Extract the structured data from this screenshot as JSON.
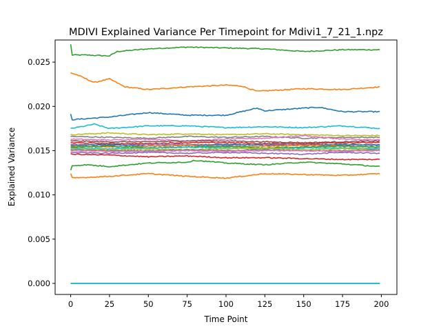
{
  "chart_data": {
    "type": "line",
    "title": "MDIVI Explained Variance Per Timepoint for Mdivi1_7_21_1.npz",
    "xlabel": "Time Point",
    "ylabel": "Explained Variance",
    "xlim": [
      -10,
      210
    ],
    "ylim": [
      -0.00125,
      0.0275
    ],
    "xticks": [
      0,
      25,
      50,
      75,
      100,
      125,
      150,
      175,
      200
    ],
    "xtick_labels": [
      "0",
      "25",
      "50",
      "75",
      "100",
      "125",
      "150",
      "175",
      "200"
    ],
    "yticks": [
      0.0,
      0.005,
      0.01,
      0.015,
      0.02,
      0.025
    ],
    "ytick_labels": [
      "0.000",
      "0.005",
      "0.010",
      "0.015",
      "0.020",
      "0.025"
    ],
    "grid": false,
    "legend": "none",
    "x_range": [
      0,
      199
    ],
    "series": [
      {
        "color": "#2ca02c",
        "x": [
          0,
          1,
          10,
          25,
          30,
          50,
          75,
          100,
          125,
          150,
          175,
          199
        ],
        "y": [
          0.027,
          0.0258,
          0.0258,
          0.0257,
          0.0262,
          0.0265,
          0.0267,
          0.0266,
          0.0265,
          0.0262,
          0.0264,
          0.0264
        ]
      },
      {
        "color": "#ff7f0e",
        "x": [
          0,
          5,
          15,
          25,
          35,
          50,
          75,
          100,
          110,
          120,
          150,
          175,
          199
        ],
        "y": [
          0.0238,
          0.0235,
          0.0227,
          0.0231,
          0.0222,
          0.0219,
          0.0222,
          0.0224,
          0.0223,
          0.0217,
          0.022,
          0.0219,
          0.0222
        ]
      },
      {
        "color": "#1f77b4",
        "x": [
          0,
          1,
          25,
          50,
          75,
          100,
          120,
          125,
          150,
          160,
          175,
          199
        ],
        "y": [
          0.0191,
          0.0185,
          0.0188,
          0.0193,
          0.019,
          0.019,
          0.0198,
          0.0195,
          0.0198,
          0.0199,
          0.0194,
          0.0194
        ]
      },
      {
        "color": "#17becf",
        "x": [
          0,
          10,
          15,
          25,
          50,
          75,
          100,
          125,
          150,
          175,
          199
        ],
        "y": [
          0.0175,
          0.0178,
          0.018,
          0.0175,
          0.0178,
          0.0178,
          0.0176,
          0.0177,
          0.0176,
          0.0178,
          0.0175
        ]
      },
      {
        "color": "#bcbd22",
        "x": [
          0,
          25,
          50,
          75,
          100,
          125,
          150,
          175,
          199
        ],
        "y": [
          0.0168,
          0.017,
          0.0168,
          0.0169,
          0.0168,
          0.0169,
          0.0168,
          0.0167,
          0.0167
        ]
      },
      {
        "color": "#7f7f7f",
        "x": [
          0,
          25,
          50,
          75,
          100,
          125,
          150,
          175,
          199
        ],
        "y": [
          0.0166,
          0.0165,
          0.0164,
          0.0166,
          0.0165,
          0.0166,
          0.0164,
          0.0165,
          0.0165
        ]
      },
      {
        "color": "#e377c2",
        "x": [
          0,
          25,
          50,
          75,
          100,
          125,
          150,
          175,
          199
        ],
        "y": [
          0.0163,
          0.0162,
          0.0163,
          0.0161,
          0.0163,
          0.0164,
          0.0167,
          0.0163,
          0.0162
        ]
      },
      {
        "color": "#8c564b",
        "x": [
          0,
          25,
          50,
          75,
          100,
          125,
          150,
          175,
          199
        ],
        "y": [
          0.0161,
          0.016,
          0.016,
          0.0161,
          0.0161,
          0.016,
          0.0159,
          0.016,
          0.0161
        ]
      },
      {
        "color": "#d62728",
        "x": [
          0,
          25,
          50,
          75,
          100,
          125,
          150,
          175,
          199
        ],
        "y": [
          0.0159,
          0.0158,
          0.0158,
          0.0159,
          0.0159,
          0.0158,
          0.0158,
          0.0159,
          0.0159
        ]
      },
      {
        "color": "#9467bd",
        "x": [
          0,
          25,
          50,
          75,
          100,
          125,
          150,
          175,
          199
        ],
        "y": [
          0.0157,
          0.0156,
          0.0157,
          0.0157,
          0.0156,
          0.0157,
          0.0157,
          0.0156,
          0.0157
        ]
      },
      {
        "color": "#1f77b4",
        "x": [
          0,
          25,
          50,
          75,
          100,
          125,
          150,
          175,
          199
        ],
        "y": [
          0.0156,
          0.0157,
          0.0155,
          0.0156,
          0.0157,
          0.0156,
          0.0156,
          0.0157,
          0.0156
        ]
      },
      {
        "color": "#ff7f0e",
        "x": [
          0,
          25,
          50,
          75,
          100,
          125,
          150,
          175,
          199
        ],
        "y": [
          0.0155,
          0.0154,
          0.0155,
          0.0156,
          0.0154,
          0.0155,
          0.0156,
          0.0155,
          0.0154
        ]
      },
      {
        "color": "#2ca02c",
        "x": [
          0,
          25,
          50,
          75,
          100,
          125,
          150,
          175,
          199
        ],
        "y": [
          0.0154,
          0.0155,
          0.0153,
          0.0154,
          0.0155,
          0.0153,
          0.0154,
          0.0155,
          0.0154
        ]
      },
      {
        "color": "#17becf",
        "x": [
          0,
          25,
          50,
          75,
          100,
          125,
          150,
          175,
          199
        ],
        "y": [
          0.0153,
          0.0152,
          0.0153,
          0.0154,
          0.0153,
          0.0152,
          0.0153,
          0.0153,
          0.0152
        ]
      },
      {
        "color": "#bcbd22",
        "x": [
          0,
          25,
          50,
          75,
          100,
          125,
          150,
          175,
          199
        ],
        "y": [
          0.0152,
          0.0151,
          0.0152,
          0.0151,
          0.0152,
          0.0153,
          0.0151,
          0.0152,
          0.0151
        ]
      },
      {
        "color": "#7f7f7f",
        "x": [
          0,
          25,
          50,
          75,
          100,
          125,
          150,
          175,
          199
        ],
        "y": [
          0.0151,
          0.015,
          0.015,
          0.0151,
          0.015,
          0.0151,
          0.015,
          0.015,
          0.0151
        ]
      },
      {
        "color": "#e377c2",
        "x": [
          0,
          25,
          50,
          75,
          100,
          125,
          150,
          175,
          199
        ],
        "y": [
          0.015,
          0.0149,
          0.0149,
          0.015,
          0.0149,
          0.015,
          0.015,
          0.0149,
          0.015
        ]
      },
      {
        "color": "#9467bd",
        "x": [
          0,
          25,
          50,
          75,
          100,
          125,
          150,
          175,
          199
        ],
        "y": [
          0.0148,
          0.0147,
          0.0148,
          0.0147,
          0.0148,
          0.0147,
          0.0146,
          0.0148,
          0.0147
        ]
      },
      {
        "color": "#d62728",
        "x": [
          0,
          25,
          50,
          75,
          100,
          125,
          150,
          175,
          199
        ],
        "y": [
          0.0146,
          0.0145,
          0.0143,
          0.0144,
          0.0142,
          0.0142,
          0.0141,
          0.014,
          0.014
        ]
      },
      {
        "color": "#2ca02c",
        "x": [
          0,
          1,
          10,
          25,
          50,
          75,
          80,
          100,
          125,
          150,
          175,
          199
        ],
        "y": [
          0.0128,
          0.0133,
          0.0134,
          0.0132,
          0.0136,
          0.0137,
          0.0139,
          0.0136,
          0.0134,
          0.0137,
          0.0135,
          0.0132
        ]
      },
      {
        "color": "#ff7f0e",
        "x": [
          0,
          1,
          25,
          50,
          75,
          100,
          125,
          150,
          175,
          199
        ],
        "y": [
          0.0124,
          0.0119,
          0.0121,
          0.0124,
          0.0121,
          0.0119,
          0.0124,
          0.0123,
          0.0122,
          0.0124
        ]
      },
      {
        "color": "#1f77b4",
        "x": [
          0,
          199
        ],
        "y": [
          0.0,
          0.0
        ]
      },
      {
        "color": "#17becf",
        "x": [
          0,
          199
        ],
        "y": [
          0.0,
          0.0
        ]
      }
    ]
  }
}
